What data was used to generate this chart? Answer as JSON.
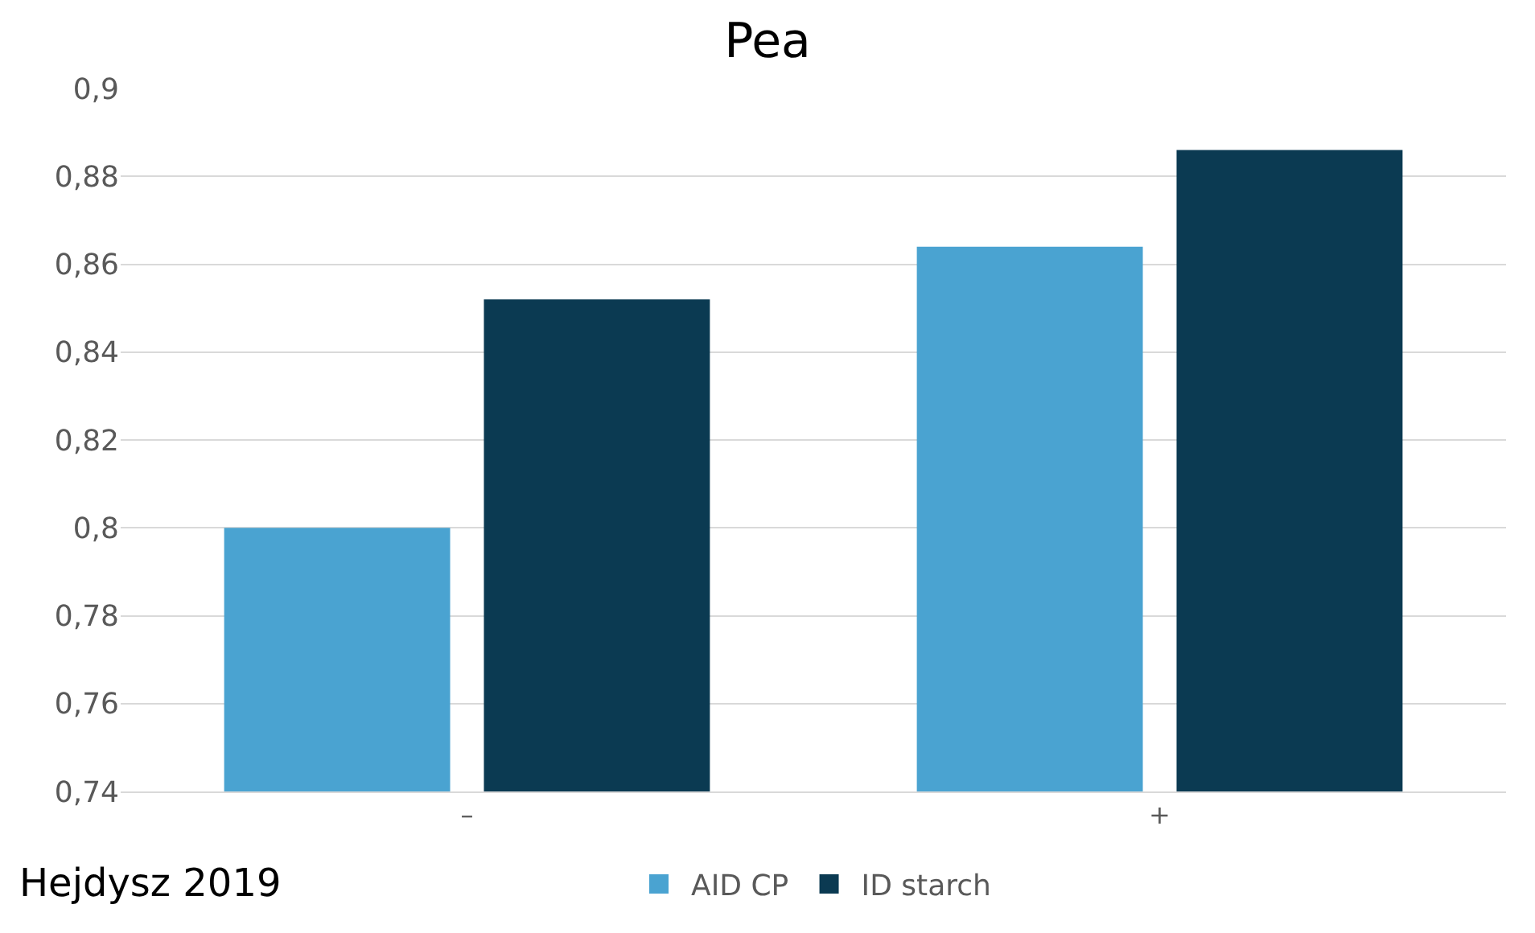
{
  "chart_data": {
    "type": "bar",
    "title": "Pea",
    "categories": [
      "–",
      "+"
    ],
    "series": [
      {
        "name": "AID CP",
        "color": "#4aa3d1",
        "values": [
          0.8,
          0.864
        ]
      },
      {
        "name": "ID starch",
        "color": "#0b3a52",
        "values": [
          0.852,
          0.886
        ]
      }
    ],
    "ylim": [
      0.74,
      0.9
    ],
    "yticks": [
      {
        "value": 0.74,
        "label": "0,74"
      },
      {
        "value": 0.76,
        "label": "0,76"
      },
      {
        "value": 0.78,
        "label": "0,78"
      },
      {
        "value": 0.8,
        "label": "0,8"
      },
      {
        "value": 0.82,
        "label": "0,82"
      },
      {
        "value": 0.84,
        "label": "0,84"
      },
      {
        "value": 0.86,
        "label": "0,86"
      },
      {
        "value": 0.88,
        "label": "0,88"
      },
      {
        "value": 0.9,
        "label": "0,9"
      }
    ],
    "grid": "y",
    "legend": "bottom",
    "annotations": [
      "Hejdysz 2019"
    ]
  }
}
